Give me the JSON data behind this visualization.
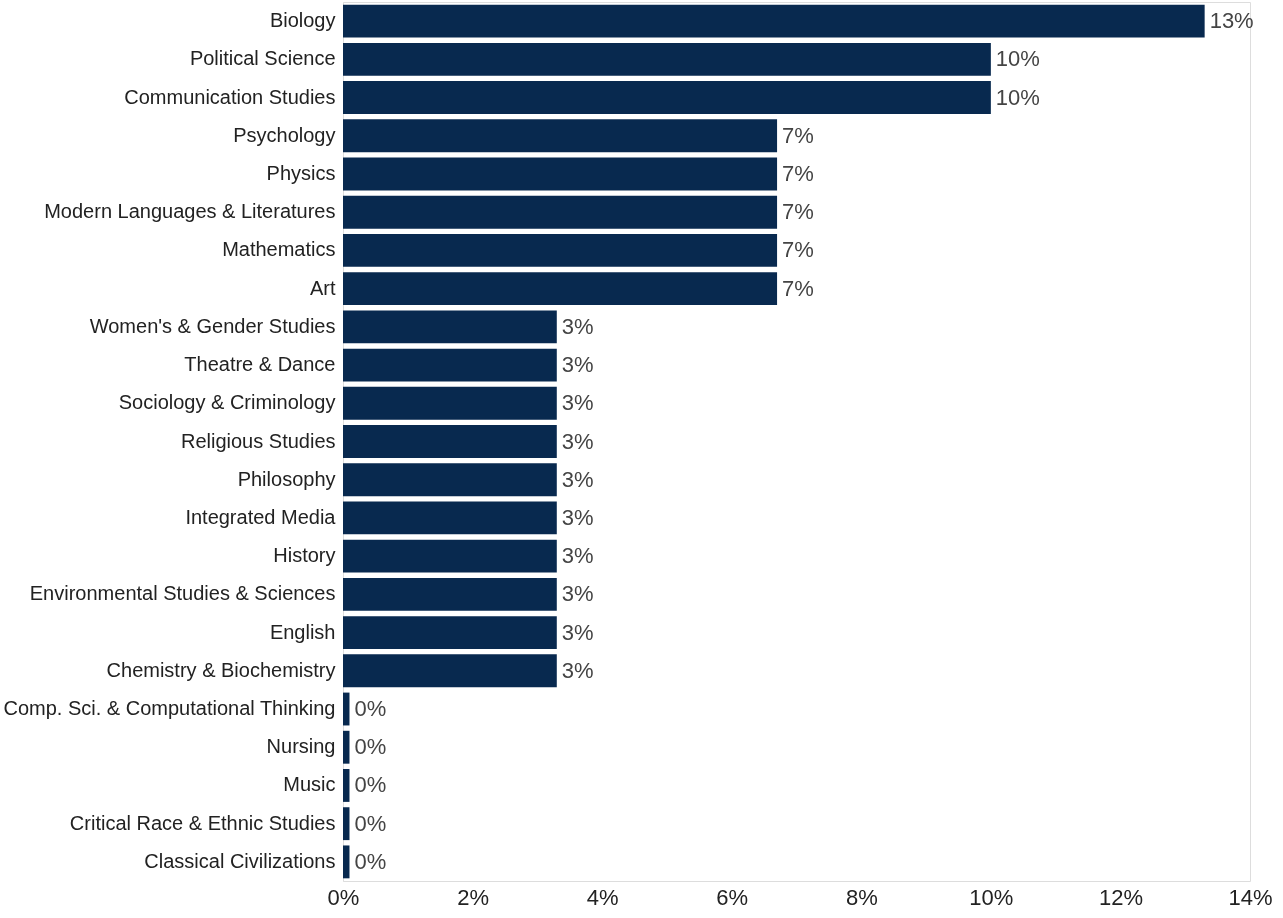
{
  "chart_data": {
    "type": "bar",
    "orientation": "horizontal",
    "categories": [
      "Biology",
      "Political Science",
      "Communication Studies",
      "Psychology",
      "Physics",
      "Modern Languages & Literatures",
      "Mathematics",
      "Art",
      "Women's & Gender Studies",
      "Theatre & Dance",
      "Sociology & Criminology",
      "Religious Studies",
      "Philosophy",
      "Integrated Media",
      "History",
      "Environmental Studies & Sciences",
      "English",
      "Chemistry & Biochemistry",
      "Comp. Sci. & Computational Thinking",
      "Nursing",
      "Music",
      "Critical Race & Ethnic Studies",
      "Classical Civilizations"
    ],
    "values": [
      13.3,
      10.0,
      10.0,
      6.7,
      6.7,
      6.7,
      6.7,
      6.7,
      3.3,
      3.3,
      3.3,
      3.3,
      3.3,
      3.3,
      3.3,
      3.3,
      3.3,
      3.3,
      0.1,
      0.1,
      0.1,
      0.1,
      0.1
    ],
    "value_labels": [
      "13%",
      "10%",
      "10%",
      "7%",
      "7%",
      "7%",
      "7%",
      "7%",
      "3%",
      "3%",
      "3%",
      "3%",
      "3%",
      "3%",
      "3%",
      "3%",
      "3%",
      "3%",
      "0%",
      "0%",
      "0%",
      "0%",
      "0%"
    ],
    "color": "#08294f",
    "xlim": [
      0,
      14
    ],
    "xticks": [
      {
        "value": 0,
        "label": "0%"
      },
      {
        "value": 2,
        "label": "2%"
      },
      {
        "value": 4,
        "label": "4%"
      },
      {
        "value": 6,
        "label": "6%"
      },
      {
        "value": 8,
        "label": "8%"
      },
      {
        "value": 10,
        "label": "10%"
      },
      {
        "value": 12,
        "label": "12%"
      },
      {
        "value": 14,
        "label": "14%"
      }
    ],
    "grid": false
  }
}
